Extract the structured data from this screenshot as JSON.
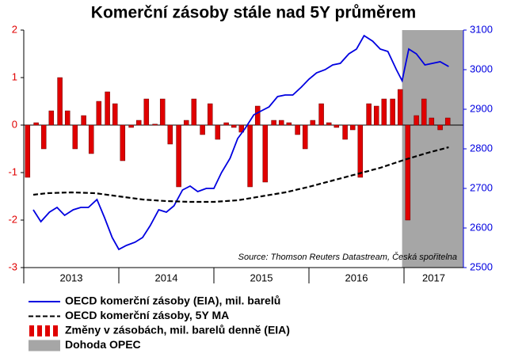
{
  "chart_data": {
    "type": "combo",
    "title": "Komerční zásoby stále nad 5Y průměrem",
    "annotation": "Source: Thomson Reuters Datastream, Česká spořitelna",
    "xlim": [
      2013,
      2017.625
    ],
    "xticks": [
      2013,
      2014,
      2015,
      2016,
      2017
    ],
    "ylim": [
      -3,
      2
    ],
    "yticks": [
      -3,
      -2,
      -1,
      0,
      1,
      2
    ],
    "y2lim": [
      2500,
      3100
    ],
    "y2ticks": [
      2500,
      2600,
      2700,
      2800,
      2900,
      3000,
      3100
    ],
    "shaded_regions": [
      {
        "name": "Dohoda OPEC",
        "color": "#a6a6a6",
        "x": [
          2016.98,
          2017.625
        ]
      }
    ],
    "series": [
      {
        "name": "OECD komerční zásoby (EIA), mil. barelů",
        "type": "line",
        "axis": "y2",
        "color": "#0000e0",
        "style": "solid",
        "x": [
          2013.1,
          2013.18,
          2013.27,
          2013.35,
          2013.43,
          2013.52,
          2013.6,
          2013.68,
          2013.77,
          2013.85,
          2013.93,
          2014.0,
          2014.08,
          2014.17,
          2014.25,
          2014.33,
          2014.42,
          2014.5,
          2014.58,
          2014.67,
          2014.75,
          2014.83,
          2014.92,
          2015.0,
          2015.08,
          2015.17,
          2015.25,
          2015.33,
          2015.42,
          2015.5,
          2015.58,
          2015.67,
          2015.75,
          2015.83,
          2015.92,
          2016.0,
          2016.08,
          2016.17,
          2016.25,
          2016.33,
          2016.42,
          2016.5,
          2016.58,
          2016.67,
          2016.75,
          2016.83,
          2016.92,
          2016.98,
          2017.05,
          2017.13,
          2017.22,
          2017.3,
          2017.38,
          2017.47
        ],
        "values": [
          2646,
          2616,
          2640,
          2652,
          2632,
          2646,
          2652,
          2652,
          2672,
          2626,
          2576,
          2546,
          2556,
          2564,
          2576,
          2606,
          2646,
          2640,
          2656,
          2696,
          2706,
          2692,
          2700,
          2700,
          2740,
          2776,
          2826,
          2852,
          2886,
          2896,
          2906,
          2932,
          2936,
          2936,
          2956,
          2976,
          2992,
          3000,
          3012,
          3016,
          3040,
          3052,
          3086,
          3072,
          3052,
          3046,
          3000,
          2972,
          3052,
          3040,
          3012,
          3016,
          3020,
          3008
        ]
      },
      {
        "name": "OECD komerční zásoby, 5Y MA",
        "type": "line",
        "axis": "y2",
        "color": "#000000",
        "style": "dashed",
        "x": [
          2013.1,
          2013.25,
          2013.5,
          2013.75,
          2014.0,
          2014.25,
          2014.5,
          2014.75,
          2015.0,
          2015.25,
          2015.5,
          2015.75,
          2016.0,
          2016.25,
          2016.5,
          2016.75,
          2017.0,
          2017.25,
          2017.47
        ],
        "values": [
          2684,
          2688,
          2690,
          2688,
          2680,
          2672,
          2668,
          2666,
          2666,
          2670,
          2680,
          2690,
          2704,
          2720,
          2736,
          2752,
          2772,
          2790,
          2804
        ]
      },
      {
        "name": "Změny v zásobách, mil. barelů denně (EIA)",
        "type": "bar",
        "axis": "y",
        "color": "#e00000",
        "x": [
          2013.04,
          2013.13,
          2013.21,
          2013.29,
          2013.38,
          2013.46,
          2013.54,
          2013.63,
          2013.71,
          2013.79,
          2013.88,
          2013.96,
          2014.04,
          2014.13,
          2014.21,
          2014.29,
          2014.38,
          2014.46,
          2014.54,
          2014.63,
          2014.71,
          2014.79,
          2014.88,
          2014.96,
          2015.04,
          2015.13,
          2015.21,
          2015.29,
          2015.38,
          2015.46,
          2015.54,
          2015.63,
          2015.71,
          2015.79,
          2015.88,
          2015.96,
          2016.04,
          2016.13,
          2016.21,
          2016.29,
          2016.38,
          2016.46,
          2016.54,
          2016.63,
          2016.71,
          2016.79,
          2016.88,
          2016.96,
          2017.04,
          2017.13,
          2017.21,
          2017.29,
          2017.38,
          2017.46
        ],
        "values": [
          -1.1,
          0.05,
          -0.5,
          0.3,
          1.0,
          0.3,
          -0.5,
          0.2,
          -0.6,
          0.5,
          0.7,
          0.45,
          -0.75,
          -0.05,
          0.1,
          0.55,
          0.02,
          0.55,
          -0.4,
          -1.3,
          0.1,
          0.55,
          -0.2,
          0.45,
          -0.3,
          0.05,
          -0.05,
          -0.15,
          -1.3,
          0.4,
          -1.2,
          0.1,
          0.1,
          0.05,
          -0.2,
          -0.5,
          0.1,
          0.45,
          0.05,
          -0.05,
          -0.3,
          -0.1,
          -1.1,
          0.45,
          0.4,
          0.55,
          0.55,
          0.75,
          -2.0,
          0.2,
          0.55,
          0.15,
          -0.1,
          0.15
        ]
      }
    ]
  }
}
